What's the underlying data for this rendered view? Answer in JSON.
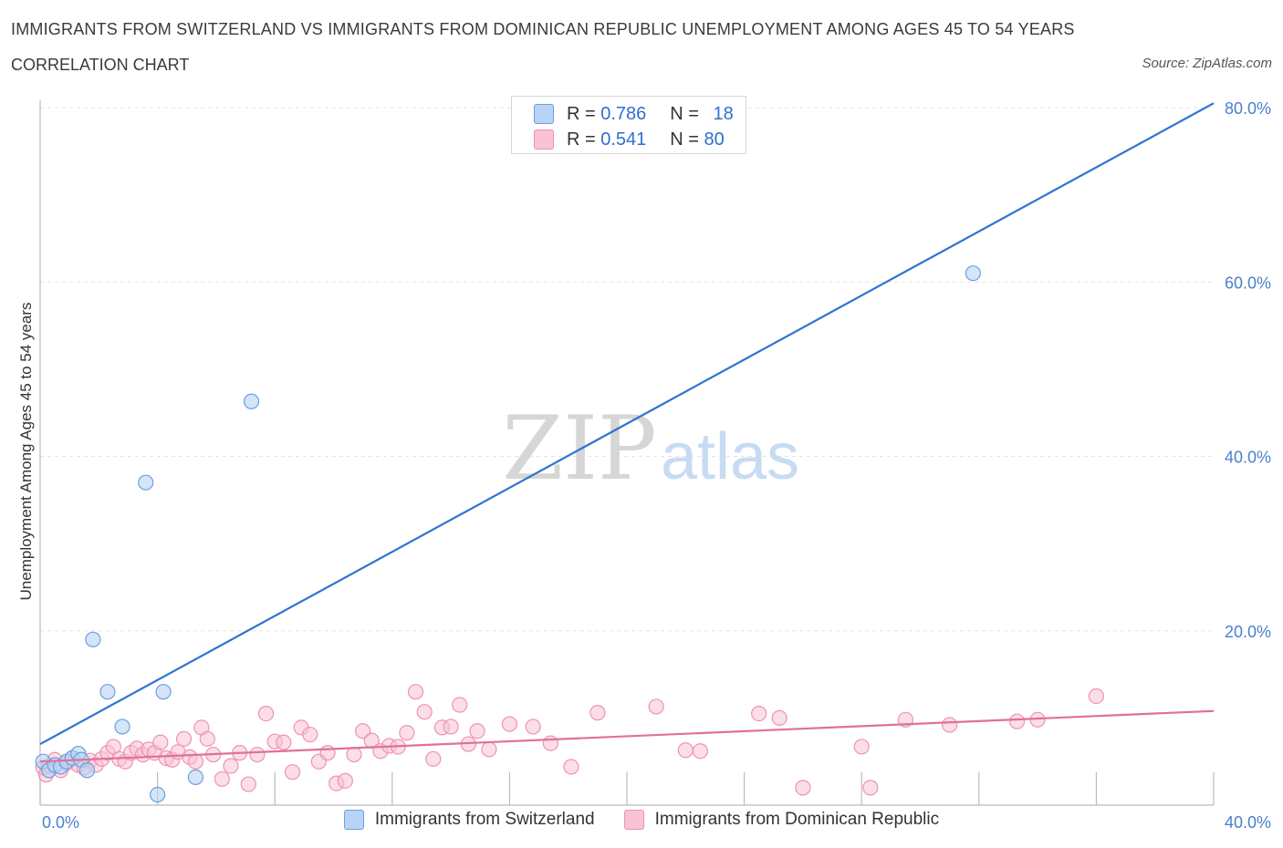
{
  "title": "IMMIGRANTS FROM SWITZERLAND VS IMMIGRANTS FROM DOMINICAN REPUBLIC UNEMPLOYMENT AMONG AGES 45 TO 54 YEARS",
  "subtitle": "CORRELATION CHART",
  "source": "Source: ZipAtlas.com",
  "watermark": {
    "zip": "ZIP",
    "atlas": "atlas"
  },
  "legend": {
    "series1": {
      "r_label": "R = ",
      "r_value": "0.786",
      "n_label": "N = ",
      "n_value": "18"
    },
    "series2": {
      "r_label": "R = ",
      "r_value": "0.541",
      "n_label": "N = ",
      "n_value": "80"
    }
  },
  "colors": {
    "blue_fill": "#b8d3f5",
    "blue_stroke": "#6a9fe0",
    "blue_line": "#2d74d0",
    "pink_fill": "#f8c3d3",
    "pink_stroke": "#ee93b0",
    "pink_line": "#e0709a",
    "grid": "#e3e3e3",
    "axis": "#bbbbbb"
  },
  "chart_data": {
    "type": "scatter",
    "title": "IMMIGRANTS FROM SWITZERLAND VS IMMIGRANTS FROM DOMINICAN REPUBLIC UNEMPLOYMENT AMONG AGES 45 TO 54 YEARS",
    "xlabel": "",
    "ylabel": "Unemployment Among Ages 45 to 54 years",
    "xlim": [
      0,
      40
    ],
    "ylim": [
      0,
      80
    ],
    "x_tick_labels": [
      "0.0%",
      "40.0%"
    ],
    "y_ticks": [
      20,
      40,
      60,
      80
    ],
    "y_tick_labels": [
      "20.0%",
      "40.0%",
      "60.0%",
      "80.0%"
    ],
    "grid": true,
    "series": [
      {
        "name": "Immigrants from Switzerland",
        "color": "#6a9fe0",
        "x": [
          0.1,
          0.3,
          0.5,
          0.7,
          0.9,
          1.1,
          1.3,
          1.4,
          1.6,
          1.8,
          2.3,
          2.8,
          3.6,
          4.0,
          4.2,
          5.3,
          7.2,
          31.8
        ],
        "y": [
          5.0,
          4.0,
          4.6,
          4.4,
          5.0,
          5.4,
          5.9,
          5.2,
          4.0,
          19.0,
          13.0,
          9.0,
          37.0,
          1.2,
          13.0,
          3.2,
          46.3,
          61.0
        ],
        "trend": {
          "x": [
            0,
            40
          ],
          "y": [
            7.0,
            80.5
          ]
        }
      },
      {
        "name": "Immigrants from Dominican Republic",
        "color": "#ee93b0",
        "x": [
          0.1,
          0.2,
          0.3,
          0.5,
          0.7,
          0.9,
          1.1,
          1.3,
          1.5,
          1.7,
          1.9,
          2.1,
          2.3,
          2.5,
          2.7,
          2.9,
          3.1,
          3.3,
          3.5,
          3.7,
          3.9,
          4.1,
          4.3,
          4.5,
          4.7,
          4.9,
          5.1,
          5.3,
          5.5,
          5.7,
          5.9,
          6.2,
          6.5,
          6.8,
          7.1,
          7.4,
          7.7,
          8.0,
          8.3,
          8.6,
          8.9,
          9.2,
          9.5,
          9.8,
          10.1,
          10.4,
          10.7,
          11.0,
          11.3,
          11.6,
          11.9,
          12.2,
          12.5,
          12.8,
          13.1,
          13.4,
          13.7,
          14.0,
          14.3,
          14.6,
          14.9,
          15.3,
          16.0,
          16.8,
          17.4,
          18.1,
          19.0,
          21.0,
          22.0,
          22.5,
          24.5,
          25.2,
          26.0,
          28.0,
          28.3,
          29.5,
          31.0,
          33.3,
          34.0,
          36.0
        ],
        "y": [
          4.3,
          3.5,
          4.5,
          5.2,
          4.0,
          4.8,
          5.4,
          4.6,
          4.3,
          5.1,
          4.6,
          5.3,
          6.0,
          6.7,
          5.3,
          5.0,
          6.0,
          6.5,
          5.8,
          6.4,
          6.0,
          7.2,
          5.4,
          5.2,
          6.1,
          7.6,
          5.5,
          5.0,
          8.9,
          7.6,
          5.8,
          3.0,
          4.5,
          6.0,
          2.4,
          5.8,
          10.5,
          7.3,
          7.2,
          3.8,
          8.9,
          8.1,
          5.0,
          6.0,
          2.5,
          2.8,
          5.8,
          8.5,
          7.4,
          6.2,
          6.8,
          6.7,
          8.3,
          13.0,
          10.7,
          5.3,
          8.9,
          9.0,
          11.5,
          7.0,
          8.5,
          6.4,
          9.3,
          9.0,
          7.1,
          4.4,
          10.6,
          11.3,
          6.3,
          6.2,
          10.5,
          10.0,
          2.0,
          6.7,
          2.0,
          9.8,
          9.2,
          9.6,
          9.8,
          12.5
        ],
        "trend": {
          "x": [
            0,
            40
          ],
          "y": [
            5.0,
            10.8
          ]
        }
      }
    ]
  },
  "bottom_legend": [
    {
      "label": "Immigrants from Switzerland"
    },
    {
      "label": "Immigrants from Dominican Republic"
    }
  ]
}
